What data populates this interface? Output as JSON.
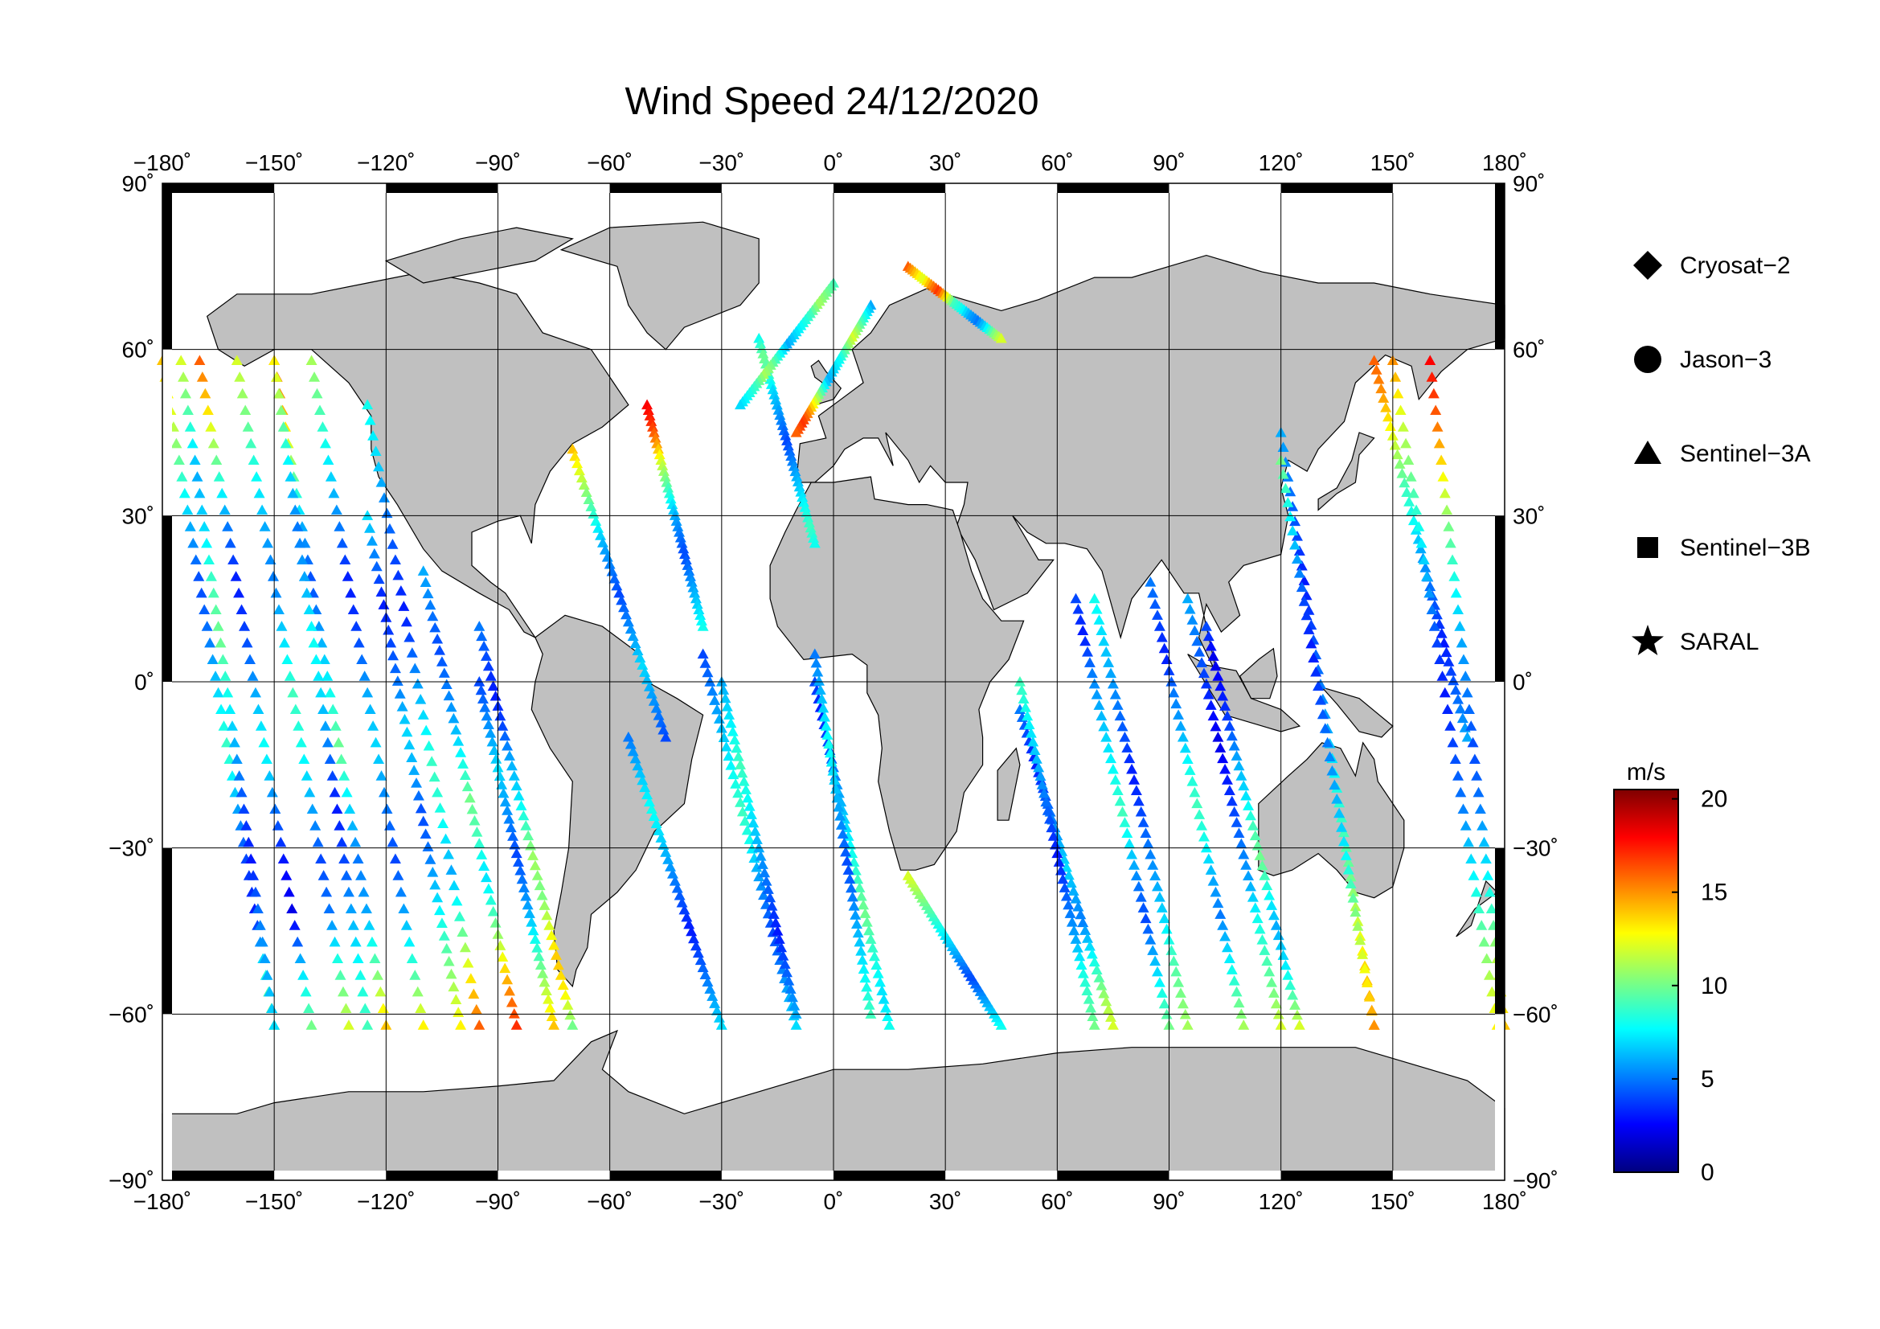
{
  "title": "Wind Speed 24/12/2020",
  "map": {
    "projection": "equirectangular",
    "lon_range": [
      -180,
      180
    ],
    "lat_range": [
      -90,
      90
    ],
    "ocean_color": "#ffffff",
    "land_color": "#c0c0c0",
    "coast_color": "#000000",
    "grid": true,
    "grid_lon": [
      -150,
      -120,
      -90,
      -60,
      -30,
      0,
      30,
      60,
      90,
      120,
      150
    ],
    "grid_lat": [
      -60,
      -30,
      0,
      30,
      60
    ]
  },
  "axes": {
    "lon_ticks": [
      {
        "value": -180,
        "label": "−180˚"
      },
      {
        "value": -150,
        "label": "−150˚"
      },
      {
        "value": -120,
        "label": "−120˚"
      },
      {
        "value": -90,
        "label": "−90˚"
      },
      {
        "value": -60,
        "label": "−60˚"
      },
      {
        "value": -30,
        "label": "−30˚"
      },
      {
        "value": 0,
        "label": "0˚"
      },
      {
        "value": 30,
        "label": "30˚"
      },
      {
        "value": 60,
        "label": "60˚"
      },
      {
        "value": 90,
        "label": "90˚"
      },
      {
        "value": 120,
        "label": "120˚"
      },
      {
        "value": 150,
        "label": "150˚"
      },
      {
        "value": 180,
        "label": "180˚"
      }
    ],
    "lat_ticks": [
      {
        "value": 90,
        "label": "90˚"
      },
      {
        "value": 60,
        "label": "60˚"
      },
      {
        "value": 30,
        "label": "30˚"
      },
      {
        "value": 0,
        "label": "0˚"
      },
      {
        "value": -30,
        "label": "−30˚"
      },
      {
        "value": -60,
        "label": "−60˚"
      },
      {
        "value": -90,
        "label": "−90˚"
      }
    ]
  },
  "legend": {
    "placement": "right",
    "items": [
      {
        "label": "Cryosat−2",
        "symbol": "diamond"
      },
      {
        "label": "Jason−3",
        "symbol": "circle"
      },
      {
        "label": "Sentinel−3A",
        "symbol": "triangle"
      },
      {
        "label": "Sentinel−3B",
        "symbol": "square"
      },
      {
        "label": "SARAL",
        "symbol": "star"
      }
    ]
  },
  "colorbar": {
    "unit": "m/s",
    "min": 0,
    "max": 20.5,
    "ticks": [
      {
        "value": 0,
        "label": "0"
      },
      {
        "value": 5,
        "label": "5"
      },
      {
        "value": 10,
        "label": "10"
      },
      {
        "value": 15,
        "label": "15"
      },
      {
        "value": 20,
        "label": "20"
      }
    ],
    "colormap": [
      "#00007f",
      "#0000ff",
      "#007fff",
      "#00ffff",
      "#7fff7f",
      "#ffff00",
      "#ff7f00",
      "#ff0000",
      "#7f0000"
    ]
  },
  "chart_data": {
    "type": "scatter",
    "variable": "wind speed",
    "unit": "m/s",
    "tracks": [
      {
        "satellite": "Sentinel−3A",
        "lon_start": -180,
        "lat_start": 58,
        "lon_end": -150,
        "lat_end": -62,
        "speeds": [
          14,
          12,
          9,
          6,
          4,
          5,
          7,
          9,
          6,
          4,
          3,
          8,
          11
        ]
      },
      {
        "satellite": "Sentinel−3A",
        "lon_start": -170,
        "lat_start": 58,
        "lon_end": -140,
        "lat_end": -62,
        "speeds": [
          16,
          13,
          9,
          5,
          3,
          4,
          6,
          8,
          5,
          3,
          2,
          7,
          10
        ]
      },
      {
        "satellite": "Sentinel−3A",
        "lon_start": -160,
        "lat_start": 58,
        "lon_end": -130,
        "lat_end": -62,
        "speeds": [
          12,
          10,
          8,
          6,
          5,
          7,
          9,
          8,
          6,
          4,
          5,
          9,
          12
        ]
      },
      {
        "satellite": "Sentinel−3A",
        "lon_start": -150,
        "lat_start": 58,
        "lon_end": -120,
        "lat_end": -62,
        "speeds": [
          17,
          14,
          10,
          6,
          4,
          6,
          8,
          10,
          7,
          5,
          6,
          10,
          14
        ]
      },
      {
        "satellite": "Sentinel−3A",
        "lon_start": -140,
        "lat_start": 58,
        "lon_end": -110,
        "lat_end": -62,
        "speeds": [
          11,
          9,
          7,
          5,
          3,
          4,
          6,
          7,
          5,
          4,
          6,
          9,
          13
        ]
      },
      {
        "satellite": "Sentinel−3A",
        "lon_start": -125,
        "lat_start": 50,
        "lon_end": -95,
        "lat_end": -62,
        "speeds": [
          8,
          7,
          5,
          4,
          3,
          5,
          7,
          9,
          8,
          6,
          9,
          13,
          16
        ]
      },
      {
        "satellite": "Sentinel−3A",
        "lon_start": -110,
        "lat_start": 20,
        "lon_end": -85,
        "lat_end": -62,
        "speeds": [
          6,
          5,
          4,
          5,
          6,
          8,
          10,
          9,
          7,
          9,
          12,
          15,
          17
        ]
      },
      {
        "satellite": "Sentinel−3A",
        "lon_start": -95,
        "lat_start": 10,
        "lon_end": -70,
        "lat_end": -62,
        "speeds": [
          5,
          4,
          3,
          4,
          6,
          7,
          9,
          11,
          10,
          12,
          14,
          13,
          10
        ]
      },
      {
        "satellite": "Sentinel−3A",
        "lon_start": -70,
        "lat_start": 42,
        "lon_end": -45,
        "lat_end": -10,
        "speeds": [
          14,
          12,
          10,
          8,
          6,
          5,
          4,
          5,
          6,
          7,
          6,
          5,
          4
        ]
      },
      {
        "satellite": "Sentinel−3A",
        "lon_start": -50,
        "lat_start": 50,
        "lon_end": -35,
        "lat_end": 10,
        "speeds": [
          18,
          17,
          15,
          12,
          10,
          8,
          6,
          5,
          4,
          5,
          6,
          7,
          8
        ]
      },
      {
        "satellite": "Sentinel−3A",
        "lon_start": -35,
        "lat_start": 5,
        "lon_end": -10,
        "lat_end": -62,
        "speeds": [
          4,
          5,
          6,
          7,
          8,
          9,
          8,
          6,
          5,
          4,
          5,
          6,
          7
        ]
      },
      {
        "satellite": "Sentinel−3A",
        "lon_start": -20,
        "lat_start": 62,
        "lon_end": -5,
        "lat_end": 25,
        "speeds": [
          8,
          10,
          9,
          7,
          6,
          5,
          4,
          5,
          6,
          7,
          8,
          9,
          8
        ]
      },
      {
        "satellite": "Sentinel−3A",
        "lon_start": -5,
        "lat_start": 0,
        "lon_end": 15,
        "lat_end": -62,
        "speeds": [
          4,
          3,
          4,
          5,
          6,
          7,
          8,
          9,
          10,
          9,
          8,
          7,
          8
        ]
      },
      {
        "satellite": "Sentinel−3A",
        "lon_start": 20,
        "lat_start": 75,
        "lon_end": 45,
        "lat_end": 62,
        "speeds": [
          16,
          14,
          12,
          15,
          17,
          13,
          9,
          8,
          6,
          5,
          7,
          10,
          12
        ]
      },
      {
        "satellite": "Sentinel−3A",
        "lon_start": 50,
        "lat_start": -5,
        "lon_end": 75,
        "lat_end": -62,
        "speeds": [
          5,
          4,
          3,
          4,
          5,
          6,
          7,
          6,
          5,
          7,
          9,
          11,
          12
        ]
      },
      {
        "satellite": "Sentinel−3A",
        "lon_start": 65,
        "lat_start": 15,
        "lon_end": 90,
        "lat_end": -62,
        "speeds": [
          4,
          3,
          5,
          6,
          7,
          8,
          9,
          7,
          5,
          4,
          6,
          8,
          10
        ]
      },
      {
        "satellite": "Sentinel−3A",
        "lon_start": 85,
        "lat_start": 18,
        "lon_end": 110,
        "lat_end": -62,
        "speeds": [
          5,
          4,
          3,
          5,
          6,
          8,
          9,
          8,
          6,
          5,
          7,
          9,
          11
        ]
      },
      {
        "satellite": "Sentinel−3A",
        "lon_start": 100,
        "lat_start": 10,
        "lon_end": 125,
        "lat_end": -62,
        "speeds": [
          4,
          2,
          3,
          4,
          6,
          7,
          9,
          10,
          8,
          6,
          7,
          9,
          12
        ]
      },
      {
        "satellite": "Sentinel−3A",
        "lon_start": 120,
        "lat_start": 45,
        "lon_end": 145,
        "lat_end": -62,
        "speeds": [
          6,
          5,
          4,
          3,
          4,
          5,
          6,
          8,
          9,
          10,
          12,
          14,
          15
        ]
      },
      {
        "satellite": "Sentinel−3A",
        "lon_start": 145,
        "lat_start": 58,
        "lon_end": 170,
        "lat_end": -10,
        "speeds": [
          16,
          15,
          13,
          11,
          9,
          8,
          6,
          5,
          4,
          3,
          4,
          5,
          6
        ]
      },
      {
        "satellite": "Sentinel−3A",
        "lon_start": 160,
        "lat_start": 58,
        "lon_end": 180,
        "lat_end": -62,
        "speeds": [
          18,
          16,
          13,
          10,
          8,
          6,
          5,
          4,
          5,
          7,
          9,
          12,
          14
        ]
      },
      {
        "satellite": "Sentinel−3A",
        "lon_start": -150,
        "lat_start": -62,
        "lon_end": -175,
        "lat_end": 58,
        "speeds": [
          7,
          6,
          5,
          3,
          4,
          6,
          8,
          10,
          9,
          7,
          6,
          9,
          12
        ]
      },
      {
        "satellite": "Sentinel−3A",
        "lon_start": -125,
        "lat_start": -62,
        "lon_end": -150,
        "lat_end": 58,
        "speeds": [
          9,
          8,
          6,
          4,
          3,
          5,
          7,
          8,
          6,
          5,
          7,
          10,
          13
        ]
      },
      {
        "satellite": "Sentinel−3A",
        "lon_start": -100,
        "lat_start": -62,
        "lon_end": -125,
        "lat_end": 30,
        "speeds": [
          13,
          11,
          9,
          7,
          5,
          4,
          6,
          7,
          5,
          4,
          3,
          5,
          7
        ]
      },
      {
        "satellite": "Sentinel−3A",
        "lon_start": -75,
        "lat_start": -62,
        "lon_end": -95,
        "lat_end": 0,
        "speeds": [
          14,
          12,
          10,
          8,
          6,
          5,
          4,
          5,
          6,
          7,
          6,
          5,
          4
        ]
      },
      {
        "satellite": "Sentinel−3A",
        "lon_start": -30,
        "lat_start": -62,
        "lon_end": -55,
        "lat_end": -10,
        "speeds": [
          7,
          6,
          5,
          4,
          3,
          4,
          5,
          6,
          7,
          8,
          7,
          6,
          5
        ]
      },
      {
        "satellite": "Sentinel−3A",
        "lon_start": -10,
        "lat_start": -60,
        "lon_end": -30,
        "lat_end": 0,
        "speeds": [
          6,
          5,
          4,
          3,
          4,
          5,
          6,
          7,
          8,
          9,
          8,
          7,
          6
        ]
      },
      {
        "satellite": "Sentinel−3A",
        "lon_start": 10,
        "lat_start": -60,
        "lon_end": -5,
        "lat_end": 5,
        "speeds": [
          9,
          8,
          7,
          6,
          5,
          4,
          5,
          6,
          7,
          8,
          7,
          6,
          5
        ]
      },
      {
        "satellite": "Sentinel−3A",
        "lon_start": 45,
        "lat_start": -62,
        "lon_end": 20,
        "lat_end": -35,
        "speeds": [
          8,
          7,
          6,
          5,
          4,
          5,
          6,
          7,
          8,
          9,
          10,
          11,
          12
        ]
      },
      {
        "satellite": "Sentinel−3A",
        "lon_start": 70,
        "lat_start": -62,
        "lon_end": 50,
        "lat_end": 0,
        "speeds": [
          10,
          9,
          8,
          6,
          5,
          4,
          3,
          4,
          5,
          6,
          7,
          8,
          9
        ]
      },
      {
        "satellite": "Sentinel−3A",
        "lon_start": 95,
        "lat_start": -62,
        "lon_end": 70,
        "lat_end": 15,
        "speeds": [
          11,
          10,
          9,
          7,
          6,
          5,
          4,
          3,
          4,
          5,
          6,
          7,
          8
        ]
      },
      {
        "satellite": "Sentinel−3A",
        "lon_start": 120,
        "lat_start": -62,
        "lon_end": 95,
        "lat_end": 15,
        "speeds": [
          12,
          10,
          9,
          8,
          6,
          5,
          4,
          3,
          2,
          3,
          4,
          5,
          6
        ]
      },
      {
        "satellite": "Sentinel−3A",
        "lon_start": 145,
        "lat_start": -62,
        "lon_end": 120,
        "lat_end": 40,
        "speeds": [
          15,
          13,
          11,
          9,
          7,
          6,
          5,
          4,
          3,
          4,
          6,
          8,
          10
        ]
      },
      {
        "satellite": "Sentinel−3A",
        "lon_start": 178,
        "lat_start": -62,
        "lon_end": 150,
        "lat_end": 58,
        "speeds": [
          13,
          11,
          9,
          7,
          5,
          4,
          3,
          4,
          6,
          8,
          10,
          12,
          15
        ]
      },
      {
        "satellite": "Sentinel−3A",
        "lon_start": 10,
        "lat_start": 68,
        "lon_end": -10,
        "lat_end": 45,
        "speeds": [
          6,
          8,
          10,
          12,
          10,
          8,
          7,
          6,
          9,
          12,
          15,
          17,
          16
        ]
      },
      {
        "satellite": "Sentinel−3A",
        "lon_start": 0,
        "lat_start": 72,
        "lon_end": -25,
        "lat_end": 50,
        "speeds": [
          9,
          10,
          11,
          9,
          8,
          7,
          6,
          8,
          10,
          11,
          9,
          8,
          7
        ]
      }
    ]
  }
}
